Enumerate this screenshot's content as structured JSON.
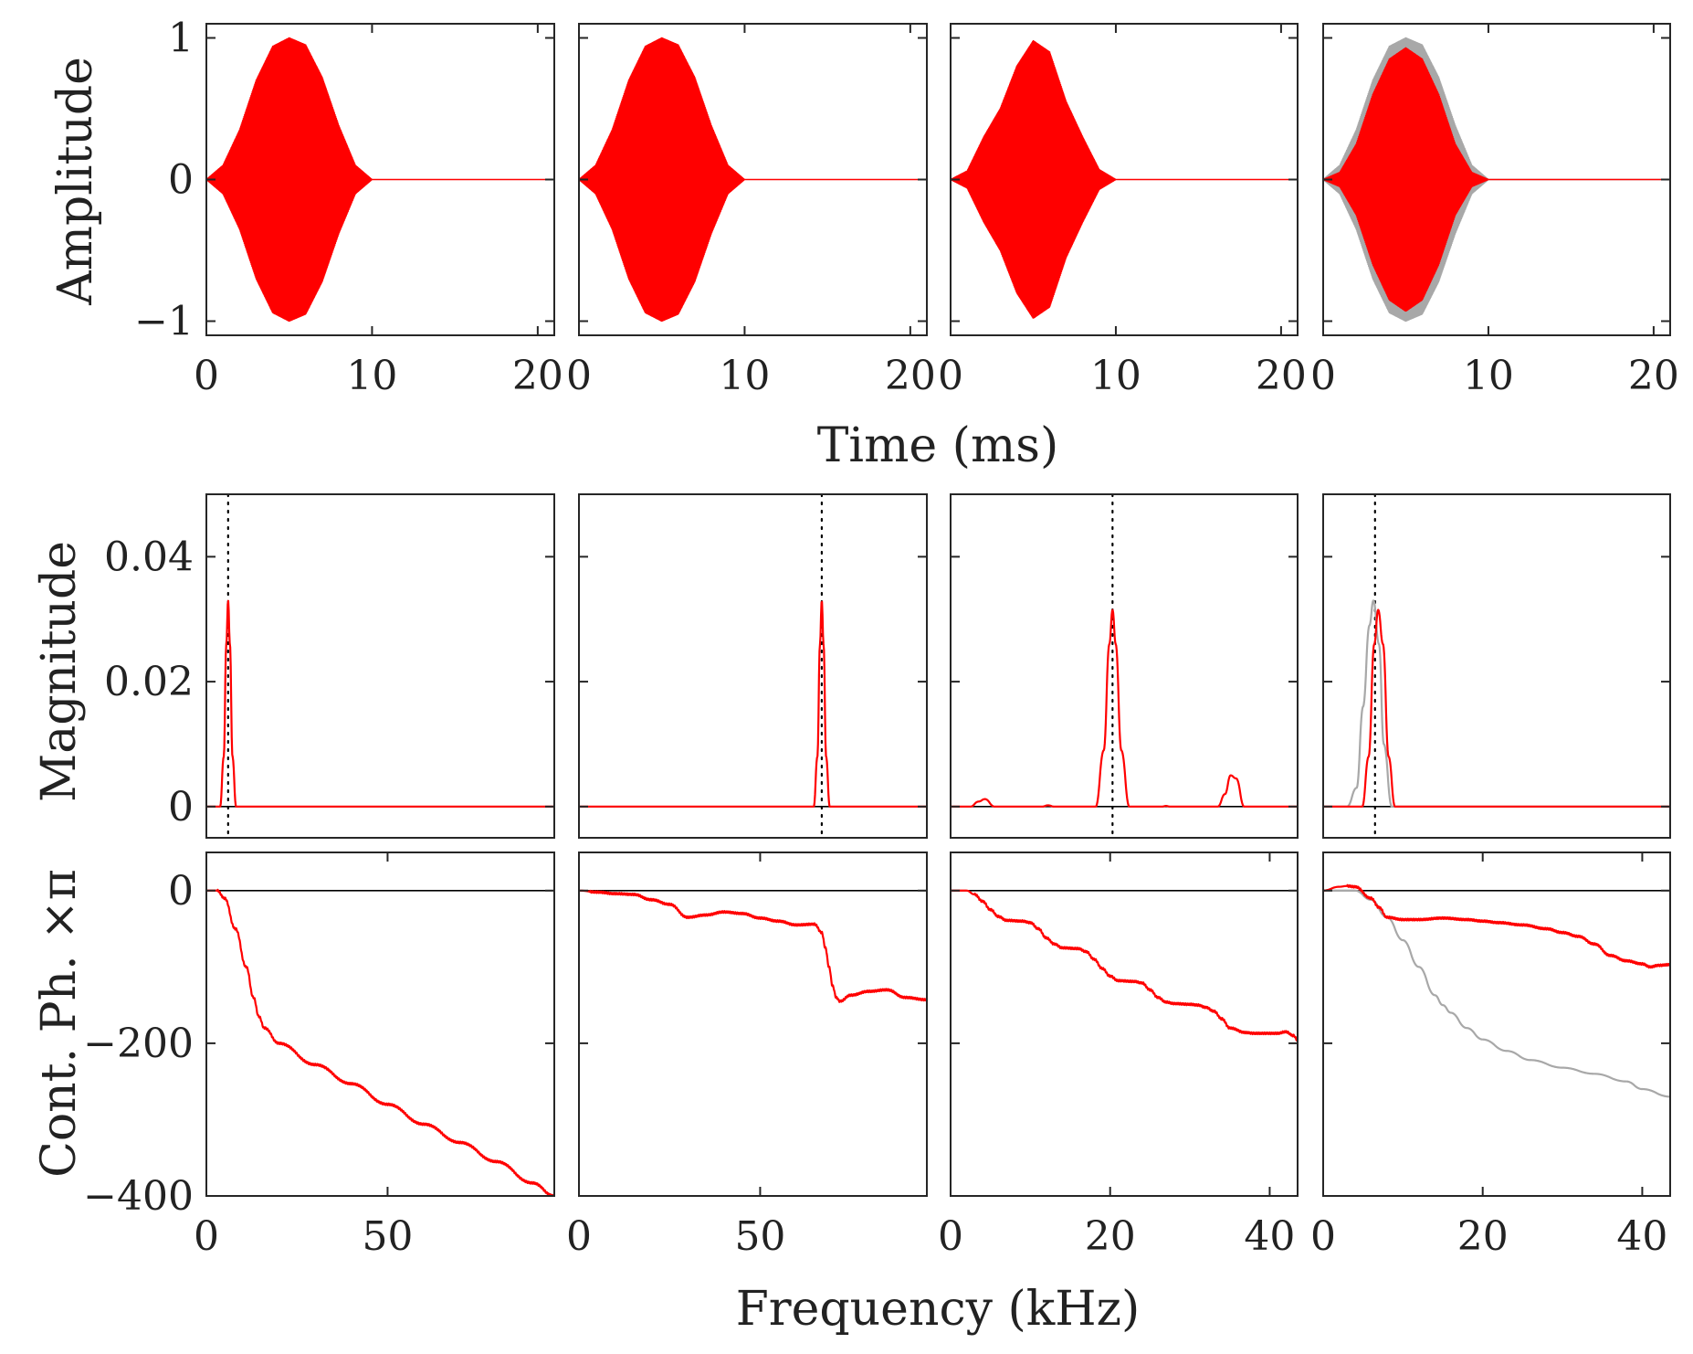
{
  "colors": {
    "signal": "#ff0000",
    "reference": "#a8a8a8",
    "zero_line": "#000000",
    "axis": "#262626"
  },
  "labels": {
    "time_xlabel": "Time (ms)",
    "freq_xlabel": "Frequency (kHz)",
    "amp_ylabel": "Amplitude",
    "mag_ylabel": "Magnitude",
    "phase_ylabel": "Cont. Ph. ×π"
  },
  "chart_data": [
    {
      "row": "amplitude",
      "type": "line",
      "xlim": [
        0,
        21
      ],
      "ylim": [
        -1.1,
        1.1
      ],
      "xticks": [
        "0",
        "10",
        "20"
      ],
      "yticks": [
        "−1",
        "0",
        "1"
      ],
      "ytick_values": [
        -1,
        0,
        1
      ],
      "panels": [
        {
          "column": 1,
          "series": [
            {
              "role": "signal",
              "kind": "chirp",
              "x": [
                0,
                1,
                2,
                3,
                4,
                5,
                6,
                7,
                8,
                9,
                10,
                21
              ],
              "envelope": [
                0.0,
                0.1,
                0.35,
                0.7,
                0.94,
                1.0,
                0.95,
                0.72,
                0.38,
                0.1,
                0.0,
                0.0
              ]
            }
          ]
        },
        {
          "column": 2,
          "series": [
            {
              "role": "signal",
              "kind": "chirp",
              "x": [
                0,
                1,
                2,
                3,
                4,
                5,
                6,
                7,
                8,
                9,
                10,
                21
              ],
              "envelope": [
                0.0,
                0.1,
                0.35,
                0.7,
                0.94,
                1.0,
                0.95,
                0.72,
                0.38,
                0.1,
                0.0,
                0.0
              ]
            }
          ]
        },
        {
          "column": 3,
          "series": [
            {
              "role": "signal",
              "kind": "chirp",
              "x": [
                0,
                1,
                2,
                3,
                4,
                5,
                6,
                7,
                8,
                9,
                10,
                21
              ],
              "envelope": [
                0.0,
                0.06,
                0.3,
                0.5,
                0.8,
                0.98,
                0.9,
                0.55,
                0.3,
                0.07,
                0.0,
                0.0
              ]
            }
          ]
        },
        {
          "column": 4,
          "series": [
            {
              "role": "reference",
              "kind": "chirp",
              "x": [
                0,
                1,
                2,
                3,
                4,
                5,
                6,
                7,
                8,
                9,
                10,
                21
              ],
              "envelope": [
                0.0,
                0.1,
                0.35,
                0.7,
                0.94,
                1.0,
                0.95,
                0.72,
                0.38,
                0.1,
                0.0,
                0.0
              ]
            },
            {
              "role": "signal",
              "kind": "chirp",
              "x": [
                0,
                1,
                2,
                3,
                4,
                5,
                6,
                7,
                8,
                9,
                10,
                21
              ],
              "envelope": [
                0.0,
                0.05,
                0.25,
                0.6,
                0.85,
                0.93,
                0.85,
                0.6,
                0.25,
                0.05,
                0.0,
                0.0
              ]
            }
          ]
        }
      ]
    },
    {
      "row": "magnitude",
      "type": "line",
      "ylim": [
        -0.005,
        0.05
      ],
      "yticks": [
        "0",
        "0.02",
        "0.04"
      ],
      "ytick_values": [
        0,
        0.02,
        0.04
      ],
      "panels": [
        {
          "column": 1,
          "xlim": [
            0,
            96
          ],
          "vline": 6,
          "series": [
            {
              "role": "signal",
              "x": [
                0,
                3.8,
                4.8,
                5.5,
                6.0,
                6.5,
                7.2,
                8.2,
                96
              ],
              "y": [
                0,
                0,
                0.008,
                0.026,
                0.033,
                0.026,
                0.008,
                0,
                0
              ]
            }
          ]
        },
        {
          "column": 2,
          "xlim": [
            0,
            96
          ],
          "vline": 67,
          "series": [
            {
              "role": "signal",
              "x": [
                0,
                64.8,
                65.8,
                66.5,
                67.0,
                67.5,
                68.2,
                69.2,
                96
              ],
              "y": [
                0,
                0,
                0.008,
                0.026,
                0.033,
                0.026,
                0.008,
                0,
                0
              ]
            }
          ]
        },
        {
          "column": 3,
          "xlim": [
            0,
            43.5
          ],
          "vline": 20.3,
          "series": [
            {
              "role": "signal",
              "x": [
                0,
                2.5,
                3.5,
                4.3,
                5.5,
                11.5,
                12.2,
                13,
                18.2,
                19.2,
                19.9,
                20.3,
                20.7,
                21.4,
                22.4,
                26.5,
                27,
                27.5,
                33.5,
                34.4,
                35.1,
                35.8,
                36.8,
                43.5
              ],
              "y": [
                0,
                0,
                0.0008,
                0.0012,
                0,
                0,
                0.0002,
                0,
                0,
                0.009,
                0.026,
                0.0315,
                0.026,
                0.009,
                0,
                0,
                0.0001,
                0,
                0,
                0.002,
                0.005,
                0.0045,
                0,
                0
              ]
            }
          ]
        },
        {
          "column": 4,
          "xlim": [
            0,
            43.5
          ],
          "vline": 6.5,
          "series": [
            {
              "role": "reference",
              "x": [
                0,
                3.0,
                4.2,
                5.0,
                5.8,
                6.3,
                7.0,
                7.6,
                8.6,
                43.5
              ],
              "y": [
                0,
                0,
                0.003,
                0.016,
                0.029,
                0.033,
                0.026,
                0.01,
                0,
                0
              ]
            },
            {
              "role": "signal",
              "x": [
                0,
                4.9,
                5.7,
                6.4,
                6.9,
                7.5,
                8.2,
                9.0,
                43.5
              ],
              "y": [
                0,
                0,
                0.008,
                0.026,
                0.0315,
                0.026,
                0.008,
                0,
                0
              ]
            }
          ]
        }
      ]
    },
    {
      "row": "phase",
      "type": "line",
      "ylim": [
        -400,
        50
      ],
      "yticks": [
        "−400",
        "−200",
        "0"
      ],
      "ytick_values": [
        -400,
        -200,
        0
      ],
      "panels": [
        {
          "column": 1,
          "xlim": [
            0,
            96
          ],
          "xticks": [
            "0",
            "50"
          ],
          "xtick_values": [
            0,
            50
          ],
          "series": [
            {
              "role": "signal",
              "x": [
                0,
                3,
                5,
                8,
                11,
                13,
                14.5,
                16,
                20,
                30,
                40,
                50,
                60,
                70,
                80,
                90,
                96
              ],
              "y": [
                0,
                0,
                -10,
                -50,
                -100,
                -140,
                -165,
                -180,
                -200,
                -228,
                -253,
                -280,
                -306,
                -330,
                -355,
                -383,
                -400
              ]
            }
          ]
        },
        {
          "column": 2,
          "xlim": [
            0,
            96
          ],
          "xticks": [
            "0",
            "50"
          ],
          "xtick_values": [
            0,
            50
          ],
          "series": [
            {
              "role": "signal",
              "x": [
                0,
                5,
                10,
                15,
                20,
                25,
                30,
                35,
                40,
                45,
                50,
                55,
                60,
                65,
                67,
                68,
                69,
                70,
                71,
                72,
                75,
                80,
                85,
                90,
                96
              ],
              "y": [
                0,
                -2,
                -4,
                -5,
                -12,
                -18,
                -35,
                -32,
                -28,
                -30,
                -36,
                -40,
                -45,
                -44,
                -55,
                -75,
                -100,
                -125,
                -140,
                -145,
                -137,
                -132,
                -130,
                -140,
                -143
              ]
            }
          ]
        },
        {
          "column": 3,
          "xlim": [
            0,
            43.5
          ],
          "xticks": [
            "0",
            "20",
            "40"
          ],
          "xtick_values": [
            0,
            20,
            40
          ],
          "series": [
            {
              "role": "signal",
              "x": [
                0,
                2,
                3,
                4,
                5,
                6,
                7,
                9,
                10,
                11,
                12,
                13,
                14,
                16,
                17,
                18,
                19,
                20,
                21,
                23,
                24,
                25,
                26,
                27,
                28,
                30,
                31,
                32,
                33,
                34,
                35,
                37,
                38,
                39,
                40,
                41,
                42,
                43,
                43.5
              ],
              "y": [
                0,
                0,
                -5,
                -14,
                -25,
                -34,
                -39,
                -40,
                -42,
                -50,
                -62,
                -70,
                -75,
                -76,
                -80,
                -90,
                -102,
                -112,
                -118,
                -119,
                -121,
                -130,
                -140,
                -146,
                -148,
                -149,
                -150,
                -153,
                -158,
                -168,
                -180,
                -186,
                -187,
                -187,
                -187,
                -187,
                -185,
                -190,
                -196
              ]
            }
          ]
        },
        {
          "column": 4,
          "xlim": [
            0,
            43.5
          ],
          "xticks": [
            "0",
            "20",
            "40"
          ],
          "xtick_values": [
            0,
            20,
            40
          ],
          "series": [
            {
              "role": "reference",
              "x": [
                0,
                3,
                4,
                6,
                8,
                10,
                12,
                14,
                15,
                16,
                18,
                20,
                23,
                26,
                30,
                34,
                38,
                40,
                43.5
              ],
              "y": [
                0,
                0,
                0,
                -12,
                -35,
                -65,
                -100,
                -137,
                -150,
                -160,
                -180,
                -195,
                -210,
                -222,
                -232,
                -240,
                -250,
                -260,
                -270
              ]
            },
            {
              "role": "signal",
              "x": [
                0,
                2,
                3,
                4,
                6,
                7,
                8,
                10,
                12,
                15,
                18,
                20,
                22,
                25,
                28,
                30,
                32,
                34,
                36,
                38,
                40,
                41,
                42,
                43.5
              ],
              "y": [
                0,
                5,
                6,
                5,
                -10,
                -22,
                -35,
                -38,
                -38,
                -36,
                -38,
                -40,
                -42,
                -45,
                -50,
                -55,
                -60,
                -70,
                -85,
                -92,
                -96,
                -100,
                -98,
                -97
              ]
            }
          ]
        }
      ]
    }
  ]
}
